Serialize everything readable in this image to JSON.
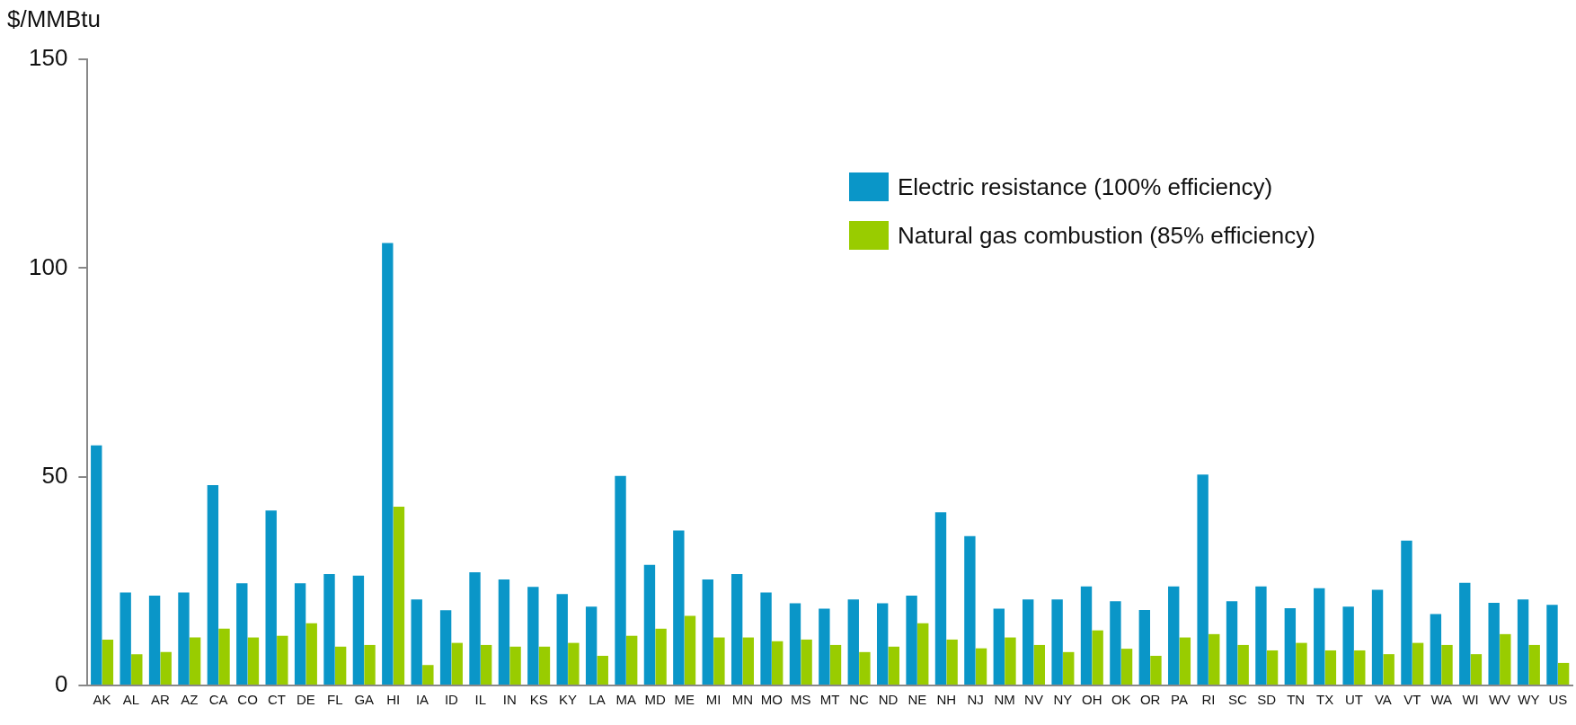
{
  "chart_data": {
    "type": "bar",
    "ylabel": "$/MMBtu",
    "categories": [
      "AK",
      "AL",
      "AR",
      "AZ",
      "CA",
      "CO",
      "CT",
      "DE",
      "FL",
      "GA",
      "HI",
      "IA",
      "ID",
      "IL",
      "IN",
      "KS",
      "KY",
      "LA",
      "MA",
      "MD",
      "ME",
      "MI",
      "MN",
      "MO",
      "MS",
      "MT",
      "NC",
      "ND",
      "NE",
      "NH",
      "NJ",
      "NM",
      "NV",
      "NY",
      "OH",
      "OK",
      "OR",
      "PA",
      "RI",
      "SC",
      "SD",
      "TN",
      "TX",
      "UT",
      "VA",
      "VT",
      "WA",
      "WI",
      "WV",
      "WY",
      "US"
    ],
    "series": [
      {
        "name": "Electric resistance (100% efficiency)",
        "color": "#0a96c8",
        "values": [
          57.5,
          22.3,
          21.5,
          22.3,
          48.0,
          24.5,
          41.9,
          24.5,
          26.7,
          26.3,
          106,
          20.6,
          18.0,
          27.1,
          25.4,
          23.6,
          21.9,
          18.9,
          50.2,
          28.9,
          37.1,
          25.4,
          26.7,
          22.3,
          19.7,
          18.4,
          20.6,
          19.7,
          21.5,
          41.5,
          35.8,
          18.4,
          20.6,
          20.6,
          23.7,
          20.2,
          18.1,
          23.7,
          50.5,
          20.2,
          23.7,
          18.5,
          23.3,
          18.9,
          22.9,
          34.7,
          17.1,
          24.6,
          19.8,
          20.6,
          19.3
        ]
      },
      {
        "name": "Natural gas combustion (85% efficiency)",
        "color": "#99cc00",
        "values": [
          11.0,
          7.5,
          8.0,
          11.5,
          13.6,
          11.5,
          11.9,
          14.9,
          9.3,
          9.7,
          42.8,
          4.9,
          10.2,
          9.7,
          9.3,
          9.3,
          10.2,
          7.1,
          11.9,
          13.6,
          16.7,
          11.5,
          11.5,
          10.6,
          11.0,
          9.7,
          8.0,
          9.3,
          14.9,
          11.0,
          8.9,
          11.5,
          9.7,
          8.0,
          13.2,
          8.8,
          7.1,
          11.5,
          12.3,
          9.7,
          8.4,
          10.2,
          8.4,
          8.4,
          7.5,
          10.2,
          9.7,
          7.5,
          12.3,
          9.7,
          5.4
        ]
      }
    ],
    "ylim": [
      0,
      150
    ],
    "yticks": [
      0,
      50,
      100,
      150
    ],
    "grid": false,
    "legend": "top right"
  }
}
